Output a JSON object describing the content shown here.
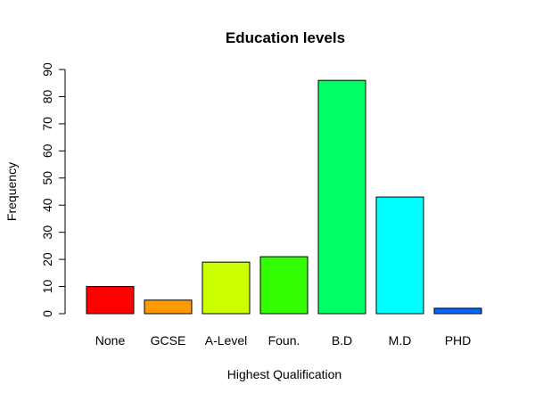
{
  "chart_data": {
    "type": "bar",
    "title": "Education levels",
    "xlabel": "Highest Qualification",
    "ylabel": "Frequency",
    "ylim": [
      0,
      90
    ],
    "yticks": [
      0,
      10,
      20,
      30,
      40,
      50,
      60,
      70,
      80,
      90
    ],
    "categories": [
      "None",
      "GCSE",
      "A-Level",
      "Foun.",
      "B.D",
      "M.D",
      "PHD"
    ],
    "values": [
      10,
      5,
      19,
      21,
      86,
      43,
      2
    ],
    "colors": [
      "#ff0000",
      "#ff9900",
      "#ccff00",
      "#33ff00",
      "#00ff66",
      "#00ffff",
      "#0066ff"
    ],
    "grid": false,
    "legend": "none"
  }
}
